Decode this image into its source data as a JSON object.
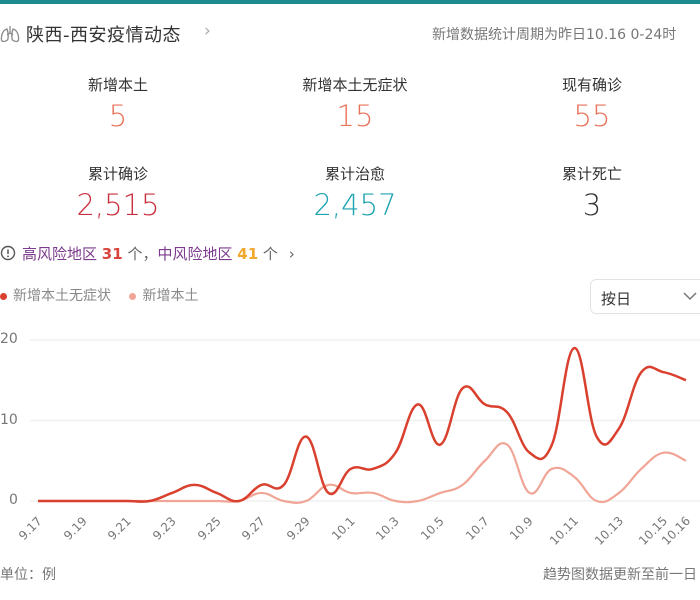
{
  "header": {
    "title": "陕西-西安疫情动态",
    "period_note": "新增数据统计周期为昨日10.16 0-24时"
  },
  "stats": [
    {
      "label": "新增本土",
      "value": "5",
      "color": "#e8735a"
    },
    {
      "label": "新增本土无症状",
      "value": "15",
      "color": "#e8735a"
    },
    {
      "label": "现有确诊",
      "value": "55",
      "color": "#e8735a"
    },
    {
      "label": "累计确诊",
      "value": "2,515",
      "color": "#c9303e"
    },
    {
      "label": "累计治愈",
      "value": "2,457",
      "color": "#1ea3b0"
    },
    {
      "label": "累计死亡",
      "value": "3",
      "color": "#333333"
    }
  ],
  "risk": {
    "high_label": "高风险地区",
    "high_count": "31",
    "unit1": "个，",
    "mid_label": "中风险地区",
    "mid_count": "41",
    "unit2": "个"
  },
  "legend": {
    "series1": "新增本土无症状",
    "series2": "新增本土"
  },
  "select": {
    "value": "按日"
  },
  "footer": {
    "unit": "单位：例",
    "note": "趋势图数据更新至前一日"
  },
  "colors": {
    "series1": "#d9402e",
    "series2": "#f0a596",
    "accent_bar": "#1d8a8f"
  },
  "chart_data": {
    "type": "line",
    "title": "",
    "xlabel": "",
    "ylabel": "单位：例",
    "ylim": [
      0,
      20
    ],
    "yticks": [
      0,
      10,
      20
    ],
    "grid": true,
    "legend_position": "top-left",
    "x": [
      "9.17",
      "9.18",
      "9.19",
      "9.20",
      "9.21",
      "9.22",
      "9.23",
      "9.24",
      "9.25",
      "9.26",
      "9.27",
      "9.28",
      "9.29",
      "9.30",
      "10.1",
      "10.2",
      "10.3",
      "10.4",
      "10.5",
      "10.6",
      "10.7",
      "10.8",
      "10.9",
      "10.10",
      "10.11",
      "10.12",
      "10.13",
      "10.14",
      "10.15",
      "10.16"
    ],
    "xtick_labels": [
      "9.17",
      "9.19",
      "9.21",
      "9.23",
      "9.25",
      "9.27",
      "9.29",
      "10.1",
      "10.3",
      "10.5",
      "10.7",
      "10.9",
      "10.11",
      "10.13",
      "10.15",
      "10.16"
    ],
    "series": [
      {
        "name": "新增本土无症状",
        "values": [
          0,
          0,
          0,
          0,
          0,
          0,
          1,
          2,
          1,
          0,
          2,
          2,
          8,
          1,
          4,
          4,
          6,
          12,
          7,
          14,
          12,
          11,
          6,
          7,
          19,
          8,
          9,
          16,
          16,
          15
        ]
      },
      {
        "name": "新增本土",
        "values": [
          0,
          0,
          0,
          0,
          0,
          0,
          0,
          0,
          0,
          0,
          1,
          0,
          0,
          2,
          1,
          1,
          0,
          0,
          1,
          2,
          5,
          7,
          1,
          4,
          3,
          0,
          1,
          4,
          6,
          5
        ]
      }
    ]
  }
}
